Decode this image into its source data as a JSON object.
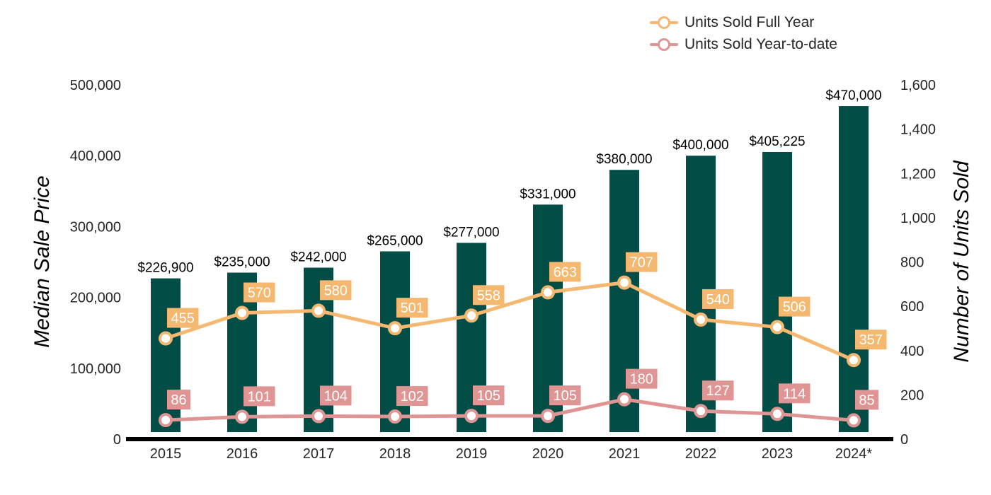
{
  "chart_data": {
    "type": "bar",
    "categories": [
      "2015",
      "2016",
      "2017",
      "2018",
      "2019",
      "2020",
      "2021",
      "2022",
      "2023",
      "2024*"
    ],
    "y_left_label": "Median Sale Price",
    "y_right_label": "Number of Units Sold",
    "y_left_ticks": [
      "0",
      "100,000",
      "200,000",
      "300,000",
      "400,000",
      "500,000"
    ],
    "y_right_ticks": [
      "0",
      "200",
      "400",
      "600",
      "800",
      "1,000",
      "1,200",
      "1,400",
      "1,600"
    ],
    "ylim_left": [
      0,
      500000
    ],
    "ylim_right": [
      0,
      1600
    ],
    "bar_series": {
      "values": [
        226900,
        235000,
        242000,
        265000,
        277000,
        331000,
        380000,
        400000,
        405225,
        470000
      ],
      "labels": [
        "$226,900",
        "$235,000",
        "$242,000",
        "$265,000",
        "$277,000",
        "$331,000",
        "$380,000",
        "$400,000",
        "$405,225",
        "$470,000"
      ],
      "color": "#024d45"
    },
    "line_series": [
      {
        "name": "Units Sold Full Year",
        "values": [
          455,
          570,
          580,
          501,
          558,
          663,
          707,
          540,
          506,
          357
        ],
        "labels": [
          "455",
          "570",
          "580",
          "501",
          "558",
          "663",
          "707",
          "540",
          "506",
          "357"
        ],
        "color": "#f4b871"
      },
      {
        "name": "Units Sold Year-to-date",
        "values": [
          86,
          101,
          104,
          102,
          105,
          105,
          180,
          127,
          114,
          85
        ],
        "labels": [
          "86",
          "101",
          "104",
          "102",
          "105",
          "105",
          "180",
          "127",
          "114",
          "85"
        ],
        "color": "#e09595"
      }
    ],
    "grid": false,
    "legend_position": "top-right"
  }
}
